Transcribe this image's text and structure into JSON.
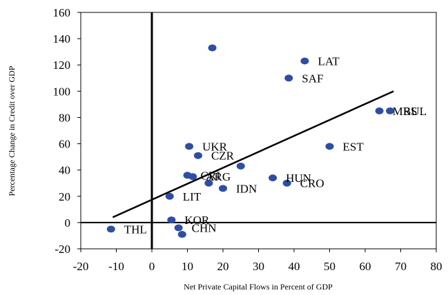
{
  "chart_data": {
    "type": "scatter",
    "xlabel": "Net Private Capital Flows in Percent of GDP",
    "ylabel": "Percentage Change in Credit over GDP",
    "xlim": [
      -20,
      80
    ],
    "ylim": [
      -20,
      160
    ],
    "xticks": [
      -20,
      -10,
      0,
      10,
      20,
      30,
      40,
      50,
      60,
      70,
      80
    ],
    "yticks": [
      -20,
      0,
      20,
      40,
      60,
      80,
      100,
      120,
      140,
      160
    ],
    "xtick_labels": [
      "-20",
      "-10",
      "0",
      "10",
      "20",
      "30",
      "40",
      "50",
      "60",
      "70",
      "80"
    ],
    "ytick_labels": [
      "-20",
      "0",
      "20",
      "40",
      "60",
      "80",
      "100",
      "120",
      "140",
      "160"
    ],
    "points": [
      {
        "label": "",
        "x": 17,
        "y": 133
      },
      {
        "label": "LAT",
        "x": 43,
        "y": 123
      },
      {
        "label": "SAF",
        "x": 38.5,
        "y": 110
      },
      {
        "label": "MRS",
        "x": 64,
        "y": 85
      },
      {
        "label": "BUL",
        "x": 67,
        "y": 85
      },
      {
        "label": "EST",
        "x": 50,
        "y": 58
      },
      {
        "label": "UKR",
        "x": 10.5,
        "y": 58
      },
      {
        "label": "CZR",
        "x": 13,
        "y": 51
      },
      {
        "label": "",
        "x": 25,
        "y": 43
      },
      {
        "label": "CRI",
        "x": 10,
        "y": 36
      },
      {
        "label": "ARG",
        "x": 11.5,
        "y": 35
      },
      {
        "label": "",
        "x": 16,
        "y": 30
      },
      {
        "label": "IDN",
        "x": 20,
        "y": 26
      },
      {
        "label": "HUN",
        "x": 34,
        "y": 34
      },
      {
        "label": "CRO",
        "x": 38,
        "y": 30
      },
      {
        "label": "LIT",
        "x": 5,
        "y": 20
      },
      {
        "label": "KOR",
        "x": 5.5,
        "y": 2
      },
      {
        "label": "CHN",
        "x": 7.5,
        "y": -4
      },
      {
        "label": "",
        "x": 8.5,
        "y": -9
      },
      {
        "label": "THL",
        "x": -11.5,
        "y": -5
      }
    ],
    "trendline": {
      "x": [
        -11,
        68
      ],
      "y": [
        4,
        100
      ]
    },
    "reference_lines": {
      "x": 0,
      "y": 0
    },
    "grid": false,
    "legend": "none",
    "marker_color": "#2e4ea6",
    "line_color": "#000000"
  }
}
